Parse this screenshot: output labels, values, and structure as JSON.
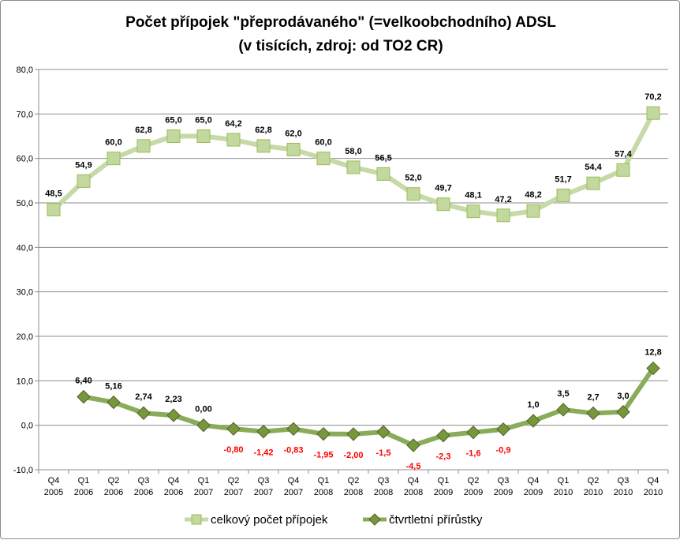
{
  "chart_data": {
    "type": "line",
    "title": "Počet  přípojek \"přeprodávaného\" (=velkoobchodního) ADSL",
    "subtitle": "(v tisících, zdroj: od TO2 CR)",
    "ylim": [
      -10,
      80
    ],
    "yticks": [
      "-10,0",
      "0,0",
      "10,0",
      "20,0",
      "30,0",
      "40,0",
      "50,0",
      "60,0",
      "70,0",
      "80,0"
    ],
    "categories": [
      [
        "Q4",
        "2005"
      ],
      [
        "Q1",
        "2006"
      ],
      [
        "Q2",
        "2006"
      ],
      [
        "Q3",
        "2006"
      ],
      [
        "Q4",
        "2006"
      ],
      [
        "Q1",
        "2007"
      ],
      [
        "Q2",
        "2007"
      ],
      [
        "Q3",
        "2007"
      ],
      [
        "Q4",
        "2007"
      ],
      [
        "Q1",
        "2008"
      ],
      [
        "Q2",
        "2008"
      ],
      [
        "Q3",
        "2008"
      ],
      [
        "Q4",
        "2008"
      ],
      [
        "Q1",
        "2009"
      ],
      [
        "Q2",
        "2009"
      ],
      [
        "Q3",
        "2009"
      ],
      [
        "Q4",
        "2009"
      ],
      [
        "Q1",
        "2010"
      ],
      [
        "Q2",
        "2010"
      ],
      [
        "Q3",
        "2010"
      ],
      [
        "Q4",
        "2010"
      ]
    ],
    "series": [
      {
        "name": "celkový počet přípojek",
        "marker": "square",
        "line_color": "#c6d9a7",
        "marker_fill": "#c2d89e",
        "values": [
          48.5,
          54.9,
          60.0,
          62.8,
          65.0,
          65.0,
          64.2,
          62.8,
          62.0,
          60.0,
          58.0,
          56.5,
          52.0,
          49.7,
          48.1,
          47.2,
          48.2,
          51.7,
          54.4,
          57.4,
          70.2
        ],
        "labels": [
          "48,5",
          "54,9",
          "60,0",
          "62,8",
          "65,0",
          "65,0",
          "64,2",
          "62,8",
          "62,0",
          "60,0",
          "58,0",
          "56,5",
          "52,0",
          "49,7",
          "48,1",
          "47,2",
          "48,2",
          "51,7",
          "54,4",
          "57,4",
          "70,2"
        ]
      },
      {
        "name": "čtvrtletní přírůstky",
        "marker": "diamond",
        "line_color": "#8aac5a",
        "marker_fill": "#77973d",
        "values": [
          null,
          6.4,
          5.16,
          2.74,
          2.23,
          0.0,
          -0.8,
          -1.42,
          -0.83,
          -1.95,
          -2.0,
          -1.5,
          -4.5,
          -2.3,
          -1.6,
          -0.9,
          1.0,
          3.5,
          2.7,
          3.0,
          12.8
        ],
        "labels": [
          null,
          "6,40",
          "5,16",
          "2,74",
          "2,23",
          "0,00",
          "-0,80",
          "-1,42",
          "-0,83",
          "-1,95",
          "-2,00",
          "-1,5",
          "-4,5",
          "-2,3",
          "-1,6",
          "-0,9",
          "1,0",
          "3,5",
          "2,7",
          "3,0",
          "12,8"
        ],
        "negative_label_color": "#ff0000"
      }
    ],
    "legend_position": "bottom",
    "grid": true
  }
}
